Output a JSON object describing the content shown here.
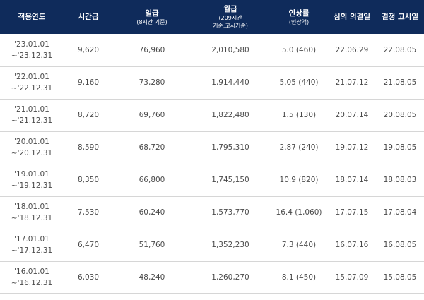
{
  "header": {
    "year": "적용연도",
    "hourly": "시간급",
    "daily": "일급",
    "daily_sub": "(8시간 기준)",
    "monthly": "월급",
    "monthly_sub1": "(209시간",
    "monthly_sub2": "기준,고시기준)",
    "rate": "인상률",
    "rate_sub": "(인상액)",
    "deliberation1": "심의",
    "deliberation2": "의결일",
    "decision1": "결정",
    "decision2": "고시일"
  },
  "rows": [
    {
      "start": "'23.01.01",
      "end": "~'23.12.31",
      "hourly": "9,620",
      "daily": "76,960",
      "monthly": "2,010,580",
      "rate": "5.0 (460)",
      "deliberation": "22.06.29",
      "decision": "22.08.05"
    },
    {
      "start": "'22.01.01",
      "end": "~'22.12.31",
      "hourly": "9,160",
      "daily": "73,280",
      "monthly": "1,914,440",
      "rate": "5.05 (440)",
      "deliberation": "21.07.12",
      "decision": "21.08.05"
    },
    {
      "start": "'21.01.01",
      "end": "~'21.12.31",
      "hourly": "8,720",
      "daily": "69,760",
      "monthly": "1,822,480",
      "rate": "1.5 (130)",
      "deliberation": "20.07.14",
      "decision": "20.08.05"
    },
    {
      "start": "'20.01.01",
      "end": "~'20.12.31",
      "hourly": "8,590",
      "daily": "68,720",
      "monthly": "1,795,310",
      "rate": "2.87 (240)",
      "deliberation": "19.07.12",
      "decision": "19.08.05"
    },
    {
      "start": "'19.01.01",
      "end": "~'19.12.31",
      "hourly": "8,350",
      "daily": "66,800",
      "monthly": "1,745,150",
      "rate": "10.9 (820)",
      "deliberation": "18.07.14",
      "decision": "18.08.03"
    },
    {
      "start": "'18.01.01",
      "end": "~'18.12.31",
      "hourly": "7,530",
      "daily": "60,240",
      "monthly": "1,573,770",
      "rate": "16.4 (1,060)",
      "deliberation": "17.07.15",
      "decision": "17.08.04"
    },
    {
      "start": "'17.01.01",
      "end": "~'17.12.31",
      "hourly": "6,470",
      "daily": "51,760",
      "monthly": "1,352,230",
      "rate": "7.3 (440)",
      "deliberation": "16.07.16",
      "decision": "16.08.05"
    },
    {
      "start": "'16.01.01",
      "end": "~'16.12.31",
      "hourly": "6,030",
      "daily": "48,240",
      "monthly": "1,260,270",
      "rate": "8.1 (450)",
      "deliberation": "15.07.09",
      "decision": "15.08.05"
    }
  ]
}
